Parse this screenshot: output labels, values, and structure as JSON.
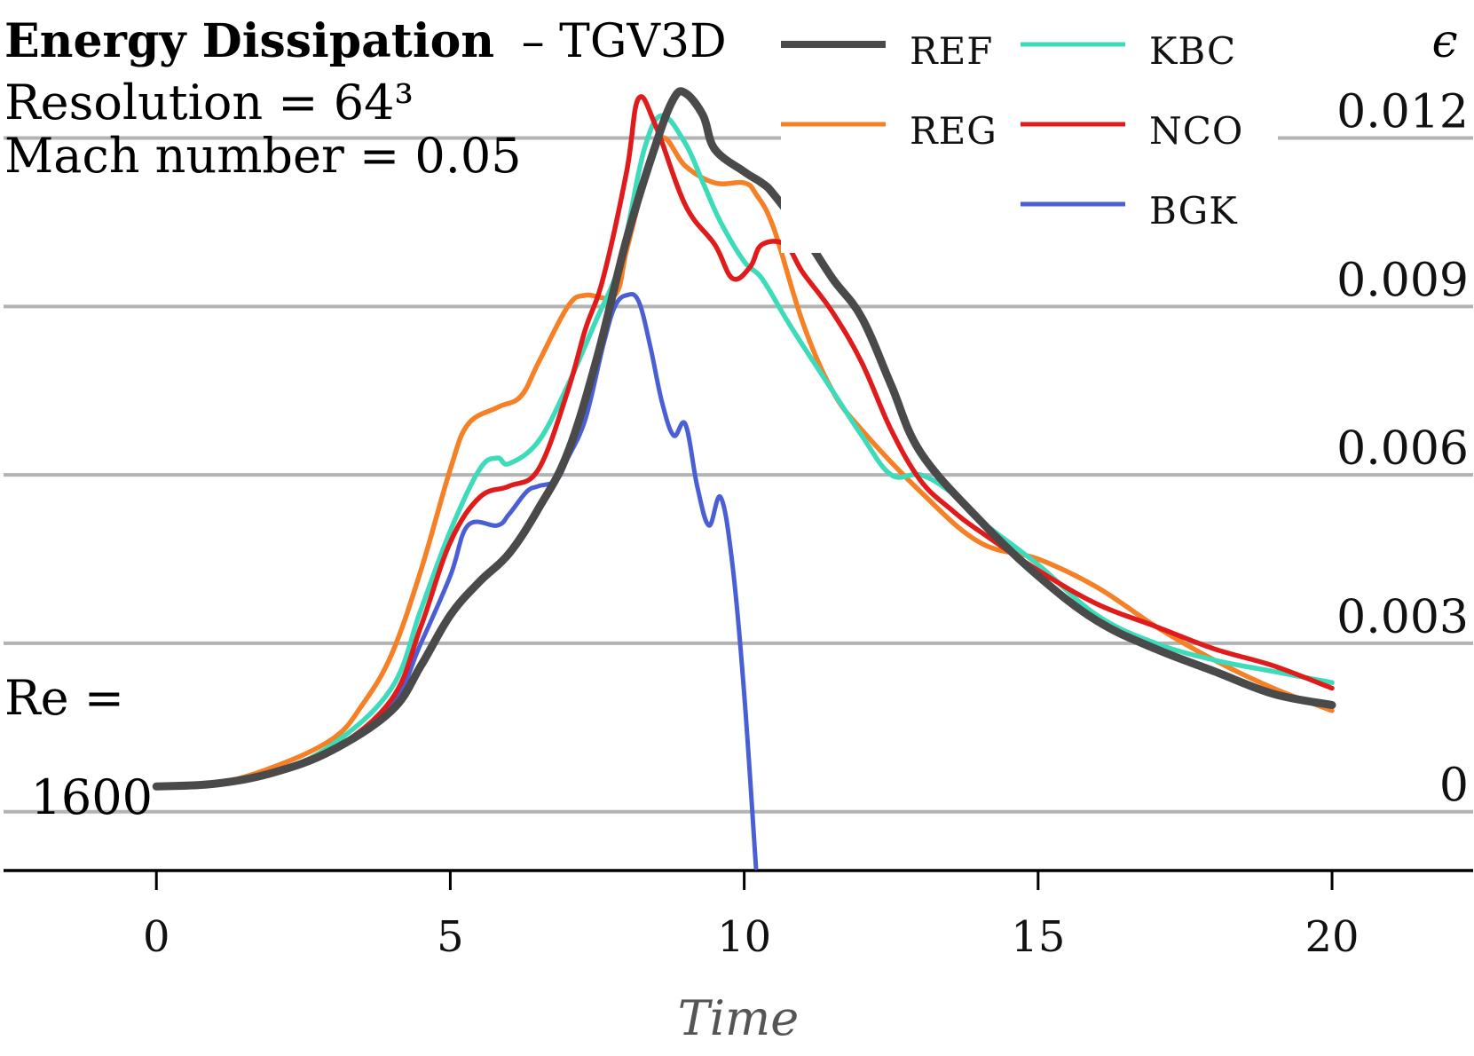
{
  "chart_data": {
    "type": "line",
    "title": "Energy Dissipation",
    "title_suffix": "– TGV3D",
    "subtitle_resolution": "Resolution = 64³",
    "subtitle_mach": "Mach number = 0.05",
    "re_label": "Re =",
    "re_value": "1600",
    "xlabel": "Time",
    "ylabel": "ϵ",
    "xlim": [
      -2.6,
      22.4
    ],
    "ylim": [
      -0.001,
      0.0143
    ],
    "xticks": [
      0,
      5,
      10,
      15,
      20
    ],
    "xtick_labels": [
      "0",
      "5",
      "10",
      "15",
      "20"
    ],
    "yticks": [
      0,
      0.003,
      0.006,
      0.009,
      0.012
    ],
    "ytick_labels": [
      "0",
      "0.003",
      "0.006",
      "0.009",
      "0.012"
    ],
    "grid": "horizontal",
    "legend_position": "top-right",
    "series": [
      {
        "name": "REF",
        "color": "#4a4a4a",
        "x": [
          0,
          1,
          2,
          3,
          4,
          4.5,
          5,
          5.5,
          6,
          6.5,
          7,
          7.5,
          8,
          8.5,
          8.8,
          9.0,
          9.3,
          9.5,
          10,
          10.3,
          10.5,
          11,
          11.5,
          12,
          12.5,
          13,
          14,
          15,
          16,
          17,
          18,
          19,
          20
        ],
        "y": [
          0.00045,
          0.0005,
          0.0007,
          0.0011,
          0.0018,
          0.0026,
          0.0035,
          0.0041,
          0.0046,
          0.0054,
          0.0064,
          0.0081,
          0.0102,
          0.0119,
          0.0127,
          0.0128,
          0.0124,
          0.0118,
          0.0114,
          0.0112,
          0.011,
          0.0103,
          0.0095,
          0.0088,
          0.0076,
          0.0064,
          0.0052,
          0.0042,
          0.0034,
          0.0029,
          0.0025,
          0.0021,
          0.0019
        ]
      },
      {
        "name": "REG",
        "color": "#f58025",
        "x": [
          0,
          1,
          2,
          3,
          3.5,
          4,
          4.5,
          5,
          5.3,
          5.8,
          6.2,
          6.5,
          7,
          7.3,
          7.8,
          8.0,
          8.3,
          8.6,
          9.0,
          9.5,
          10,
          10.2,
          10.5,
          11,
          11.5,
          12,
          13,
          14,
          15,
          16,
          17,
          18,
          19,
          20
        ],
        "y": [
          0.00045,
          0.0005,
          0.0008,
          0.0013,
          0.0019,
          0.0028,
          0.0043,
          0.0061,
          0.0069,
          0.0072,
          0.0074,
          0.008,
          0.009,
          0.0092,
          0.0092,
          0.01,
          0.0112,
          0.012,
          0.0115,
          0.0112,
          0.0112,
          0.011,
          0.0104,
          0.0087,
          0.0075,
          0.0068,
          0.0057,
          0.0048,
          0.0045,
          0.004,
          0.0033,
          0.0027,
          0.0022,
          0.0018
        ]
      },
      {
        "name": "KBC",
        "color": "#3ddbb9",
        "x": [
          0,
          1,
          2,
          3,
          4,
          4.5,
          5,
          5.5,
          5.8,
          6,
          6.5,
          7,
          7.5,
          7.8,
          8,
          8.3,
          8.6,
          9,
          9.3,
          9.6,
          10,
          10.3,
          10.7,
          11,
          11.5,
          12,
          12.5,
          13,
          13.5,
          14,
          15,
          16,
          17,
          18,
          19,
          20
        ],
        "y": [
          0.00045,
          0.0005,
          0.0007,
          0.0012,
          0.0022,
          0.0036,
          0.005,
          0.0061,
          0.0063,
          0.0062,
          0.0066,
          0.0076,
          0.0088,
          0.0095,
          0.0103,
          0.0118,
          0.0124,
          0.0119,
          0.0112,
          0.0105,
          0.0098,
          0.0095,
          0.0088,
          0.0083,
          0.0075,
          0.0067,
          0.006,
          0.006,
          0.0057,
          0.0052,
          0.0044,
          0.0035,
          0.003,
          0.0027,
          0.0025,
          0.0023
        ]
      },
      {
        "name": "NCO",
        "color": "#e01b1b",
        "x": [
          0,
          1,
          2,
          3,
          4,
          4.5,
          5,
          5.5,
          6,
          6.5,
          7,
          7.3,
          7.6,
          8.0,
          8.2,
          8.5,
          9.0,
          9.5,
          9.8,
          10.1,
          10.3,
          10.7,
          11,
          11.5,
          12,
          12.5,
          13,
          13.5,
          14,
          15,
          16,
          17,
          18,
          19,
          20
        ],
        "y": [
          0.00045,
          0.0005,
          0.0007,
          0.0011,
          0.002,
          0.0033,
          0.0048,
          0.0056,
          0.0058,
          0.0061,
          0.0075,
          0.0086,
          0.0095,
          0.0114,
          0.0127,
          0.0122,
          0.0108,
          0.0101,
          0.0095,
          0.0097,
          0.0101,
          0.0101,
          0.0096,
          0.0089,
          0.008,
          0.0068,
          0.0059,
          0.0054,
          0.005,
          0.0043,
          0.0037,
          0.0033,
          0.0029,
          0.0026,
          0.0022
        ]
      },
      {
        "name": "BGK",
        "color": "#4a5fd4",
        "x": [
          0,
          1,
          2,
          3,
          4,
          4.5,
          5,
          5.3,
          5.8,
          6,
          6.3,
          6.5,
          6.8,
          7,
          7.3,
          7.6,
          7.8,
          8.0,
          8.2,
          8.4,
          8.6,
          8.8,
          9.0,
          9.2,
          9.4,
          9.6,
          9.8,
          10.0,
          10.2
        ],
        "y": [
          0.00045,
          0.0005,
          0.0007,
          0.0011,
          0.0019,
          0.003,
          0.0042,
          0.0051,
          0.0051,
          0.0053,
          0.0057,
          0.0058,
          0.0059,
          0.0063,
          0.007,
          0.0083,
          0.009,
          0.0092,
          0.0091,
          0.0083,
          0.0073,
          0.0067,
          0.0069,
          0.0058,
          0.0051,
          0.0056,
          0.0044,
          0.0021,
          -0.001
        ]
      }
    ]
  }
}
